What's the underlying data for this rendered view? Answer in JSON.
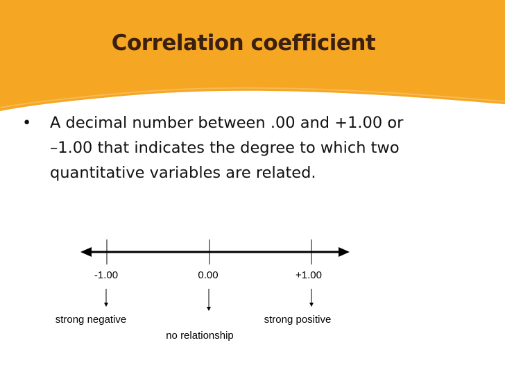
{
  "slide": {
    "title": "Correlation coefficient",
    "bullet_marker": "•",
    "bullet_lines": [
      "A decimal number between .00 and +1.00 or",
      "–1.00 that indicates the degree to which two",
      "quantitative variables are related."
    ]
  },
  "number_line": {
    "ticks": [
      {
        "label": "-1.00",
        "value": -1.0
      },
      {
        "label": "0.00",
        "value": 0.0
      },
      {
        "label": "+1.00",
        "value": 1.0
      }
    ],
    "descriptions": {
      "negative": "strong negative",
      "none": "no relationship",
      "positive": "strong positive"
    }
  },
  "colors": {
    "banner": "#f5a623",
    "title_text": "#3b1f0f"
  }
}
